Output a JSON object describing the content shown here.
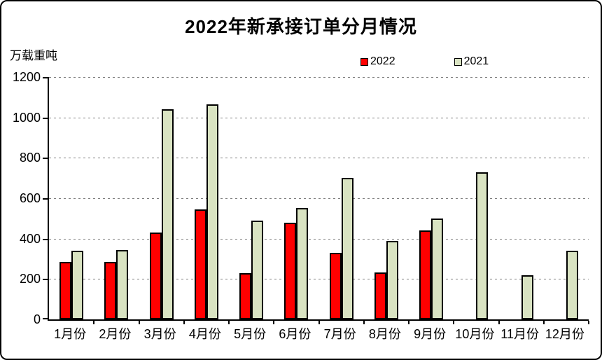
{
  "title": "2022年新承接订单分月情况",
  "y_axis_unit": "万载重吨",
  "legend": [
    {
      "label": "2022",
      "color": "#ff0000"
    },
    {
      "label": "2021",
      "color": "#d9e3c2"
    }
  ],
  "chart_data": {
    "type": "bar",
    "title": "2022年新承接订单分月情况",
    "xlabel": "",
    "ylabel": "万载重吨",
    "ylim": [
      0,
      1200
    ],
    "yticks": [
      0,
      200,
      400,
      600,
      800,
      1000,
      1200
    ],
    "grid": "horizontal-dotted",
    "legend_position": "top-center",
    "categories": [
      "1月份",
      "2月份",
      "3月份",
      "4月份",
      "5月份",
      "6月份",
      "7月份",
      "8月份",
      "9月份",
      "10月份",
      "11月份",
      "12月份"
    ],
    "series": [
      {
        "name": "2022",
        "color": "#ff0000",
        "values": [
          285,
          285,
          430,
          545,
          230,
          477,
          330,
          232,
          440,
          null,
          null,
          null
        ]
      },
      {
        "name": "2021",
        "color": "#d9e3c2",
        "values": [
          340,
          343,
          1040,
          1065,
          490,
          551,
          700,
          390,
          500,
          730,
          218,
          340
        ]
      }
    ]
  }
}
